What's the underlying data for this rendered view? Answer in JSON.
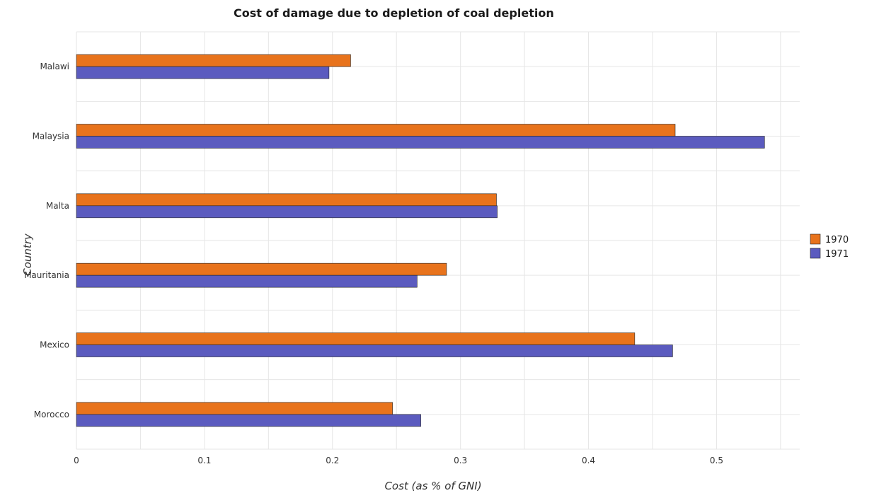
{
  "chart_data": {
    "type": "bar",
    "orientation": "horizontal",
    "title": "Cost of damage due to depletion of coal depletion",
    "xlabel": "Cost (as % of GNI)",
    "ylabel": "Country",
    "categories": [
      "Malawi",
      "Malaysia",
      "Malta",
      "Mauritania",
      "Mexico",
      "Morocco"
    ],
    "series": [
      {
        "name": "1970",
        "color": "#e8731c",
        "values": [
          0.2142,
          0.4677,
          0.3281,
          0.2891,
          0.4361,
          0.2469
        ]
      },
      {
        "name": "1971",
        "color": "#5b5bbf",
        "values": [
          0.1973,
          0.5375,
          0.3287,
          0.2661,
          0.4657,
          0.269
        ]
      }
    ],
    "xlim": [
      0,
      0.565
    ],
    "xticks": [
      "0",
      "0.1",
      "0.2",
      "0.3",
      "0.4",
      "0.5"
    ],
    "xtick_values": [
      0,
      0.1,
      0.2,
      0.3,
      0.4,
      0.5
    ],
    "grid": true,
    "legend_position": "right"
  }
}
